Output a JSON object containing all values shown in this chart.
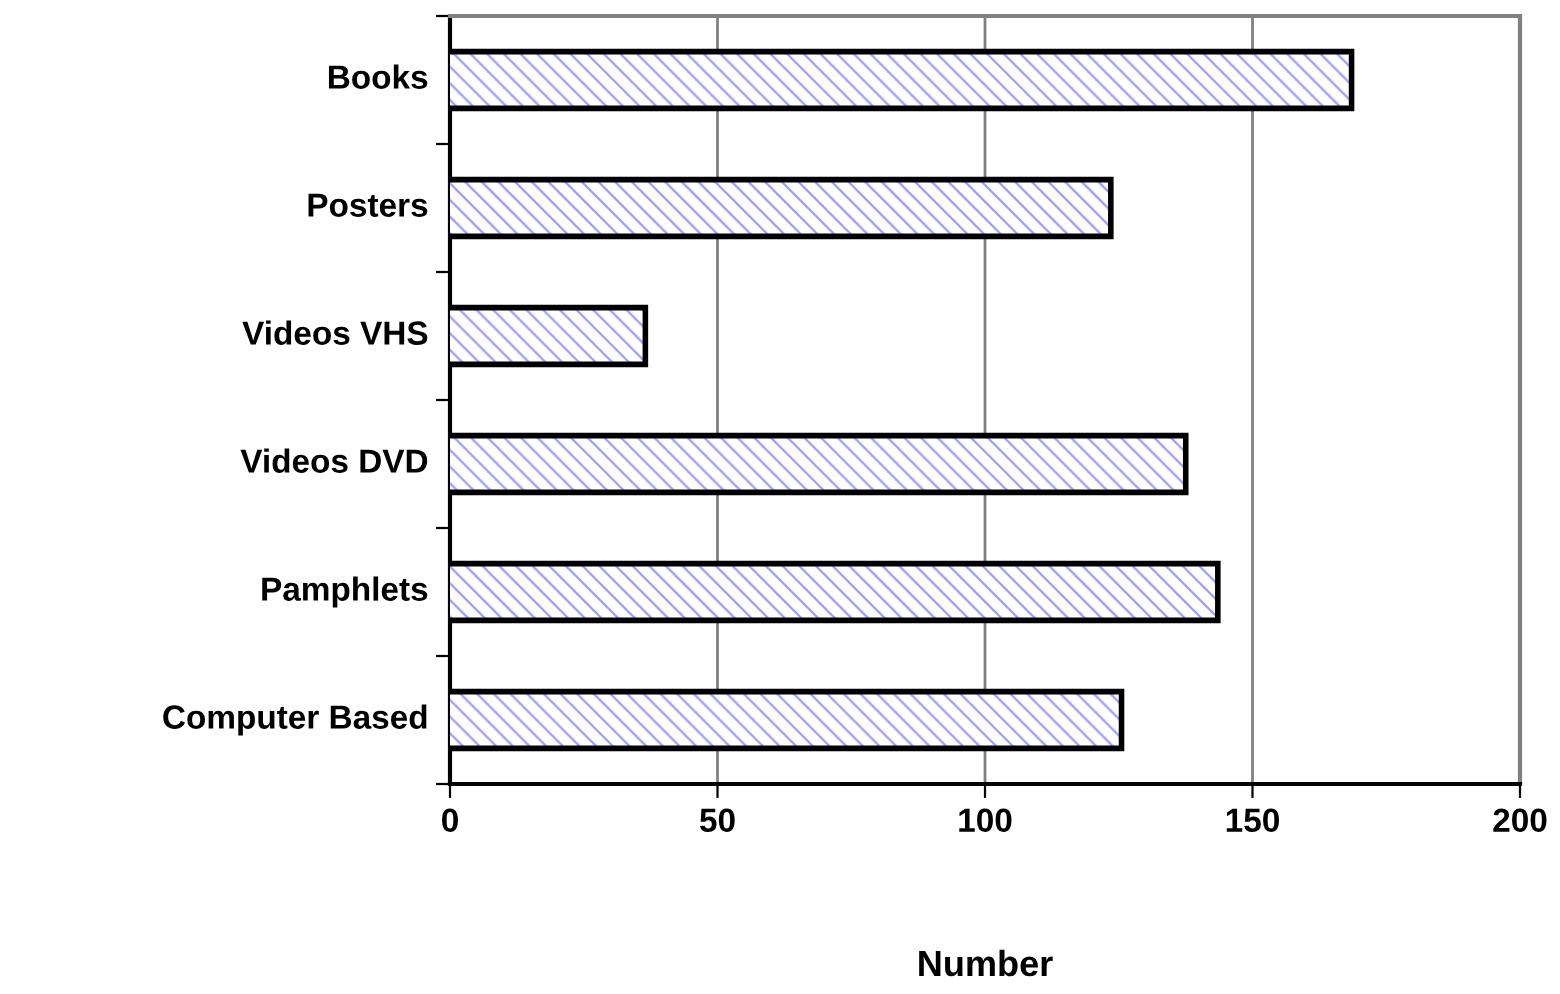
{
  "chart_data": {
    "type": "bar",
    "orientation": "horizontal",
    "xlabel": "Number",
    "categories": [
      "Books",
      "Posters",
      "Videos VHS",
      "Videos DVD",
      "Pamphlets",
      "Computer Based"
    ],
    "values": [
      168,
      123,
      36,
      137,
      143,
      125
    ],
    "color": "#9999ff",
    "xlim": [
      0,
      200
    ],
    "xticks": [
      0,
      50,
      100,
      150,
      200
    ],
    "grid": "x",
    "legend": false
  }
}
